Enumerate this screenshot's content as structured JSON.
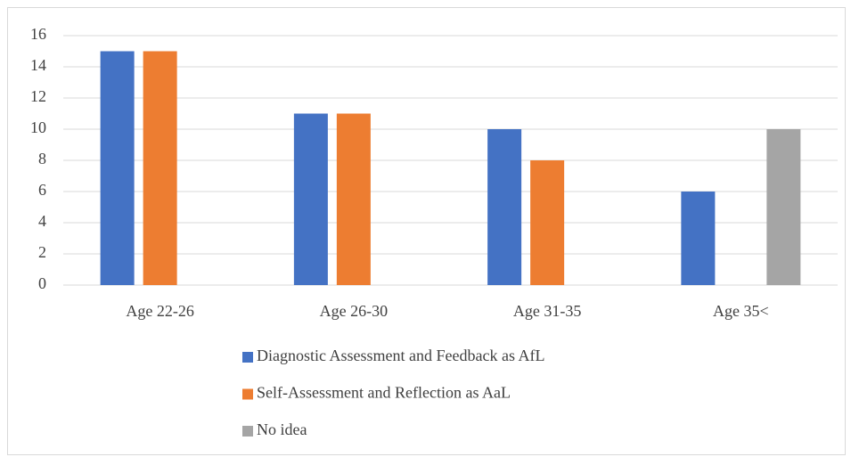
{
  "chart_data": {
    "type": "bar",
    "categories": [
      "Age 22-26",
      "Age 26-30",
      "Age 31-35",
      "Age 35<"
    ],
    "series": [
      {
        "name": "Diagnostic Assessment and Feedback as AfL",
        "color": "#4472c4",
        "values": [
          15,
          11,
          10,
          6
        ]
      },
      {
        "name": "Self-Assessment and Reflection as AaL",
        "color": "#ed7d31",
        "values": [
          15,
          11,
          8,
          0
        ]
      },
      {
        "name": "No idea",
        "color": "#a5a5a5",
        "values": [
          0,
          0,
          0,
          10
        ]
      }
    ],
    "ylim": [
      0,
      16
    ],
    "yticks": [
      0,
      2,
      4,
      6,
      8,
      10,
      12,
      14,
      16
    ],
    "grid": true,
    "legend": "bottom"
  }
}
